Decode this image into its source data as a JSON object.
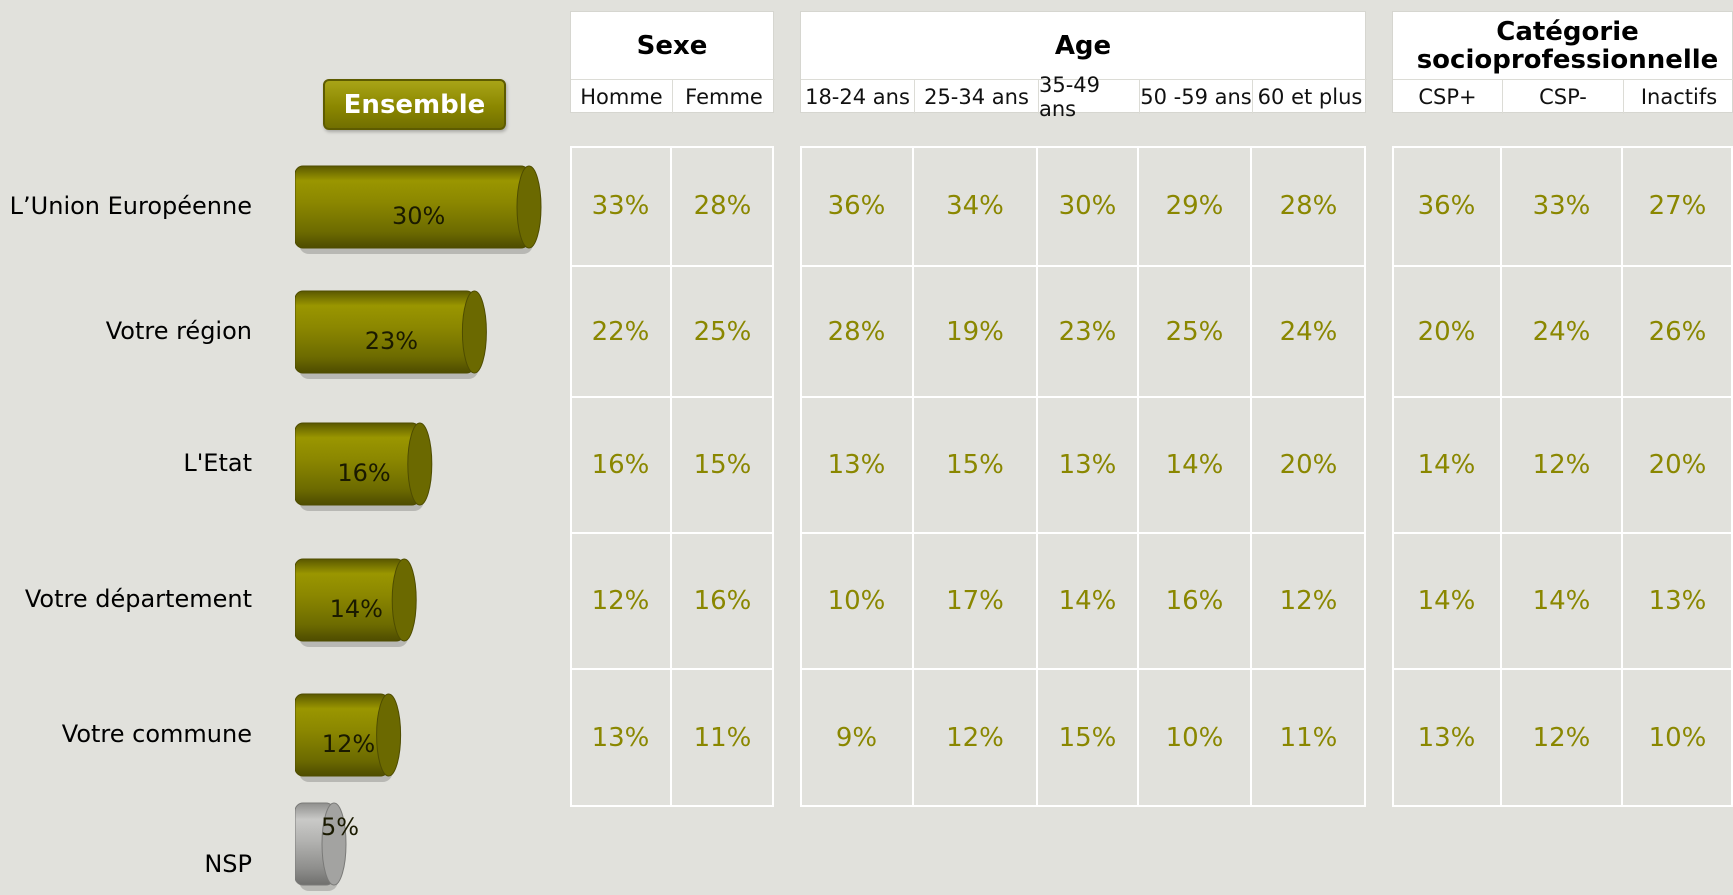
{
  "chart_data": {
    "type": "bar",
    "ensemble_label": "Ensemble",
    "rows": [
      {
        "label": "L’Union Européenne",
        "ensemble": 30,
        "ensemble_text": "30%",
        "values": [
          "33%",
          "28%",
          "36%",
          "34%",
          "30%",
          "29%",
          "28%",
          "36%",
          "33%",
          "27%"
        ]
      },
      {
        "label": "Votre région",
        "ensemble": 23,
        "ensemble_text": "23%",
        "values": [
          "22%",
          "25%",
          "28%",
          "19%",
          "23%",
          "25%",
          "24%",
          "20%",
          "24%",
          "26%"
        ]
      },
      {
        "label": "L'Etat",
        "ensemble": 16,
        "ensemble_text": "16%",
        "values": [
          "16%",
          "15%",
          "13%",
          "15%",
          "13%",
          "14%",
          "20%",
          "14%",
          "12%",
          "20%"
        ]
      },
      {
        "label": "Votre département",
        "ensemble": 14,
        "ensemble_text": "14%",
        "values": [
          "12%",
          "16%",
          "10%",
          "17%",
          "14%",
          "16%",
          "12%",
          "14%",
          "14%",
          "13%"
        ]
      },
      {
        "label": "Votre commune",
        "ensemble": 12,
        "ensemble_text": "12%",
        "values": [
          "13%",
          "11%",
          "9%",
          "12%",
          "15%",
          "10%",
          "11%",
          "13%",
          "12%",
          "10%"
        ]
      },
      {
        "label": "NSP",
        "ensemble": 5,
        "ensemble_text": "5%",
        "values": []
      }
    ],
    "groups": [
      {
        "title": "Sexe",
        "columns": [
          "Homme",
          "Femme"
        ]
      },
      {
        "title": "Age",
        "columns": [
          "18-24 ans",
          "25-34 ans",
          "35-49 ans",
          "50 -59 ans",
          "60 et plus"
        ]
      },
      {
        "title": "Catégorie socioprofessionnelle",
        "columns": [
          "CSP+",
          "CSP-",
          "Inactifs"
        ]
      }
    ]
  },
  "colors": {
    "olive": "#8b8700",
    "olive_dark": "#5e5c00",
    "grey": "#b0b0ae",
    "text_value": "#8a8700"
  }
}
